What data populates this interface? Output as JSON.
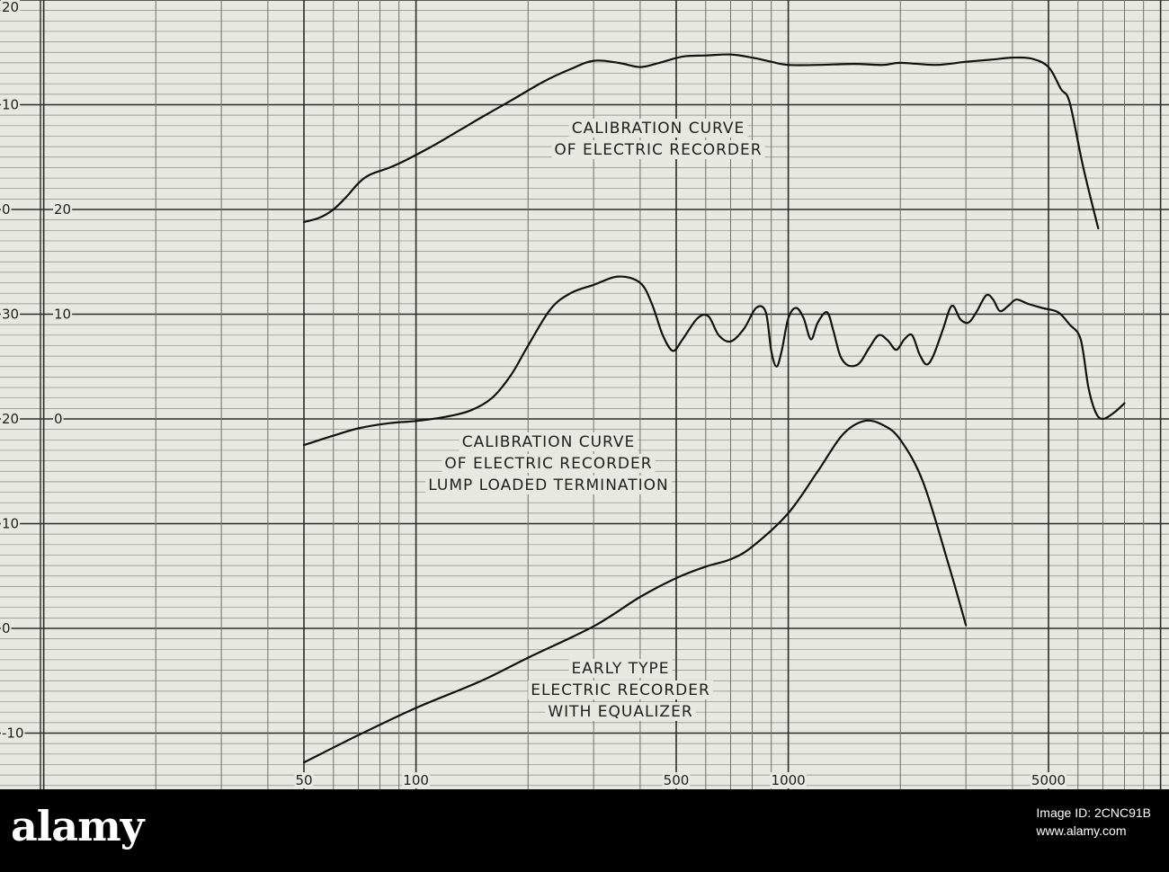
{
  "chart_data": {
    "type": "line",
    "x_scale": "log",
    "xlim": [
      50,
      8000
    ],
    "x_ticks": [
      {
        "value": 50,
        "label": "50"
      },
      {
        "value": 100,
        "label": "100"
      },
      {
        "value": 500,
        "label": "500"
      },
      {
        "value": 1000,
        "label": "1000"
      },
      {
        "value": 5000,
        "label": "5000"
      }
    ],
    "grid": true,
    "panels": [
      {
        "ylim": [
          0,
          20
        ],
        "y_ticks": [
          {
            "value": 20,
            "label": "20"
          },
          {
            "value": 10,
            "label": "10"
          },
          {
            "value": 0,
            "label": "0"
          }
        ],
        "annotation": [
          "CALIBRATION CURVE",
          "OF ELECTRIC RECORDER"
        ],
        "points": [
          [
            50,
            -1.2
          ],
          [
            55,
            -0.8
          ],
          [
            60,
            0.0
          ],
          [
            65,
            1.2
          ],
          [
            70,
            2.5
          ],
          [
            75,
            3.3
          ],
          [
            85,
            4.0
          ],
          [
            95,
            4.8
          ],
          [
            110,
            6.0
          ],
          [
            130,
            7.5
          ],
          [
            150,
            8.8
          ],
          [
            180,
            10.4
          ],
          [
            220,
            12.2
          ],
          [
            260,
            13.4
          ],
          [
            300,
            14.2
          ],
          [
            350,
            14.0
          ],
          [
            400,
            13.6
          ],
          [
            450,
            14.0
          ],
          [
            520,
            14.6
          ],
          [
            600,
            14.7
          ],
          [
            700,
            14.8
          ],
          [
            800,
            14.5
          ],
          [
            900,
            14.1
          ],
          [
            1000,
            13.8
          ],
          [
            1200,
            13.8
          ],
          [
            1500,
            13.9
          ],
          [
            1800,
            13.8
          ],
          [
            2000,
            14.0
          ],
          [
            2500,
            13.8
          ],
          [
            3000,
            14.1
          ],
          [
            3500,
            14.3
          ],
          [
            4000,
            14.5
          ],
          [
            4500,
            14.4
          ],
          [
            5000,
            13.6
          ],
          [
            5400,
            11.5
          ],
          [
            5700,
            10.2
          ],
          [
            6200,
            4.0
          ],
          [
            6800,
            -1.8
          ]
        ]
      },
      {
        "ylim": [
          0,
          20
        ],
        "y_ticks": [
          {
            "value": 20,
            "label": "20"
          },
          {
            "value": 10,
            "label": "10"
          },
          {
            "value": 0,
            "label": "0"
          }
        ],
        "annotation": [
          "CALIBRATION CURVE",
          "OF ELECTRIC RECORDER",
          "LUMP LOADED TERMINATION"
        ],
        "points": [
          [
            50,
            -2.5
          ],
          [
            60,
            -1.6
          ],
          [
            70,
            -0.9
          ],
          [
            85,
            -0.4
          ],
          [
            100,
            -0.2
          ],
          [
            120,
            0.2
          ],
          [
            140,
            0.8
          ],
          [
            160,
            2.0
          ],
          [
            180,
            4.2
          ],
          [
            200,
            7.0
          ],
          [
            230,
            10.5
          ],
          [
            260,
            12.0
          ],
          [
            300,
            12.8
          ],
          [
            350,
            13.6
          ],
          [
            400,
            13.0
          ],
          [
            430,
            11.0
          ],
          [
            460,
            8.0
          ],
          [
            490,
            6.5
          ],
          [
            520,
            7.6
          ],
          [
            570,
            9.6
          ],
          [
            610,
            9.8
          ],
          [
            650,
            8.0
          ],
          [
            700,
            7.4
          ],
          [
            760,
            8.6
          ],
          [
            820,
            10.6
          ],
          [
            870,
            10.2
          ],
          [
            900,
            6.5
          ],
          [
            930,
            5.0
          ],
          [
            960,
            6.5
          ],
          [
            1000,
            9.6
          ],
          [
            1050,
            10.6
          ],
          [
            1100,
            9.6
          ],
          [
            1150,
            7.6
          ],
          [
            1200,
            9.2
          ],
          [
            1270,
            10.2
          ],
          [
            1320,
            8.5
          ],
          [
            1380,
            6.0
          ],
          [
            1450,
            5.1
          ],
          [
            1550,
            5.3
          ],
          [
            1650,
            6.8
          ],
          [
            1750,
            8.0
          ],
          [
            1850,
            7.5
          ],
          [
            1950,
            6.6
          ],
          [
            2050,
            7.6
          ],
          [
            2150,
            8.0
          ],
          [
            2250,
            6.2
          ],
          [
            2350,
            5.2
          ],
          [
            2450,
            6.0
          ],
          [
            2600,
            8.5
          ],
          [
            2750,
            10.8
          ],
          [
            2900,
            9.5
          ],
          [
            3050,
            9.2
          ],
          [
            3200,
            10.2
          ],
          [
            3400,
            11.8
          ],
          [
            3550,
            11.4
          ],
          [
            3700,
            10.3
          ],
          [
            3900,
            10.8
          ],
          [
            4100,
            11.4
          ],
          [
            4400,
            11.0
          ],
          [
            4800,
            10.6
          ],
          [
            5300,
            10.2
          ],
          [
            5700,
            9.0
          ],
          [
            6100,
            7.6
          ],
          [
            6400,
            3.0
          ],
          [
            6700,
            0.6
          ],
          [
            7000,
            0.0
          ],
          [
            7500,
            0.6
          ],
          [
            8000,
            1.5
          ]
        ]
      },
      {
        "ylim": [
          -10,
          30
        ],
        "y_ticks": [
          {
            "value": 30,
            "label": "30"
          },
          {
            "value": 20,
            "label": "20"
          },
          {
            "value": 10,
            "label": "10"
          },
          {
            "value": 0,
            "label": "0"
          },
          {
            "value": -10,
            "label": "-10"
          }
        ],
        "annotation": [
          "EARLY TYPE",
          "ELECTRIC RECORDER",
          "WITH EQUALIZER"
        ],
        "points": [
          [
            50,
            -12.8
          ],
          [
            70,
            -10.2
          ],
          [
            100,
            -7.6
          ],
          [
            150,
            -5.0
          ],
          [
            200,
            -2.8
          ],
          [
            300,
            0.2
          ],
          [
            400,
            3.0
          ],
          [
            500,
            4.8
          ],
          [
            600,
            5.9
          ],
          [
            700,
            6.6
          ],
          [
            800,
            7.8
          ],
          [
            1000,
            11.0
          ],
          [
            1200,
            15.0
          ],
          [
            1400,
            18.5
          ],
          [
            1600,
            19.8
          ],
          [
            1800,
            19.4
          ],
          [
            2000,
            18.0
          ],
          [
            2300,
            14.0
          ],
          [
            2700,
            6.0
          ],
          [
            3000,
            0.3
          ]
        ]
      }
    ]
  },
  "watermark": {
    "brand": "alamy",
    "image_id_label": "Image ID: 2CNC91B",
    "site": "www.alamy.com"
  }
}
